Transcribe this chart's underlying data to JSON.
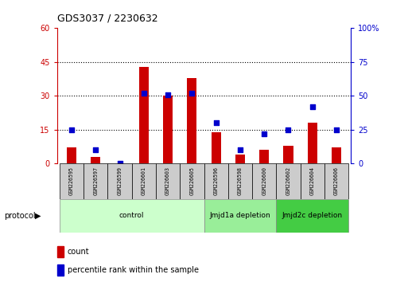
{
  "title": "GDS3037 / 2230632",
  "samples": [
    "GSM226595",
    "GSM226597",
    "GSM226599",
    "GSM226601",
    "GSM226603",
    "GSM226605",
    "GSM226596",
    "GSM226598",
    "GSM226600",
    "GSM226602",
    "GSM226604",
    "GSM226606"
  ],
  "counts": [
    7,
    3,
    0,
    43,
    30,
    38,
    14,
    4,
    6,
    8,
    18,
    7
  ],
  "percentile_ranks": [
    25,
    10,
    0,
    52,
    51,
    52,
    30,
    10,
    22,
    25,
    42,
    25
  ],
  "groups": [
    {
      "label": "control",
      "start": 0,
      "end": 6,
      "color": "#ccffcc"
    },
    {
      "label": "Jmjd1a depletion",
      "start": 6,
      "end": 9,
      "color": "#99ee99"
    },
    {
      "label": "Jmjd2c depletion",
      "start": 9,
      "end": 12,
      "color": "#44cc44"
    }
  ],
  "left_yticks": [
    0,
    15,
    30,
    45,
    60
  ],
  "right_yticks": [
    0,
    25,
    50,
    75,
    100
  ],
  "left_ylim": [
    0,
    60
  ],
  "right_ylim": [
    0,
    100
  ],
  "bar_color": "#cc0000",
  "dot_color": "#0000cc",
  "grid_color": "#000000",
  "left_tick_color": "#cc0000",
  "right_tick_color": "#0000cc",
  "bar_width": 0.4,
  "dot_size": 18,
  "fig_width": 5.13,
  "fig_height": 3.54,
  "fig_dpi": 100
}
